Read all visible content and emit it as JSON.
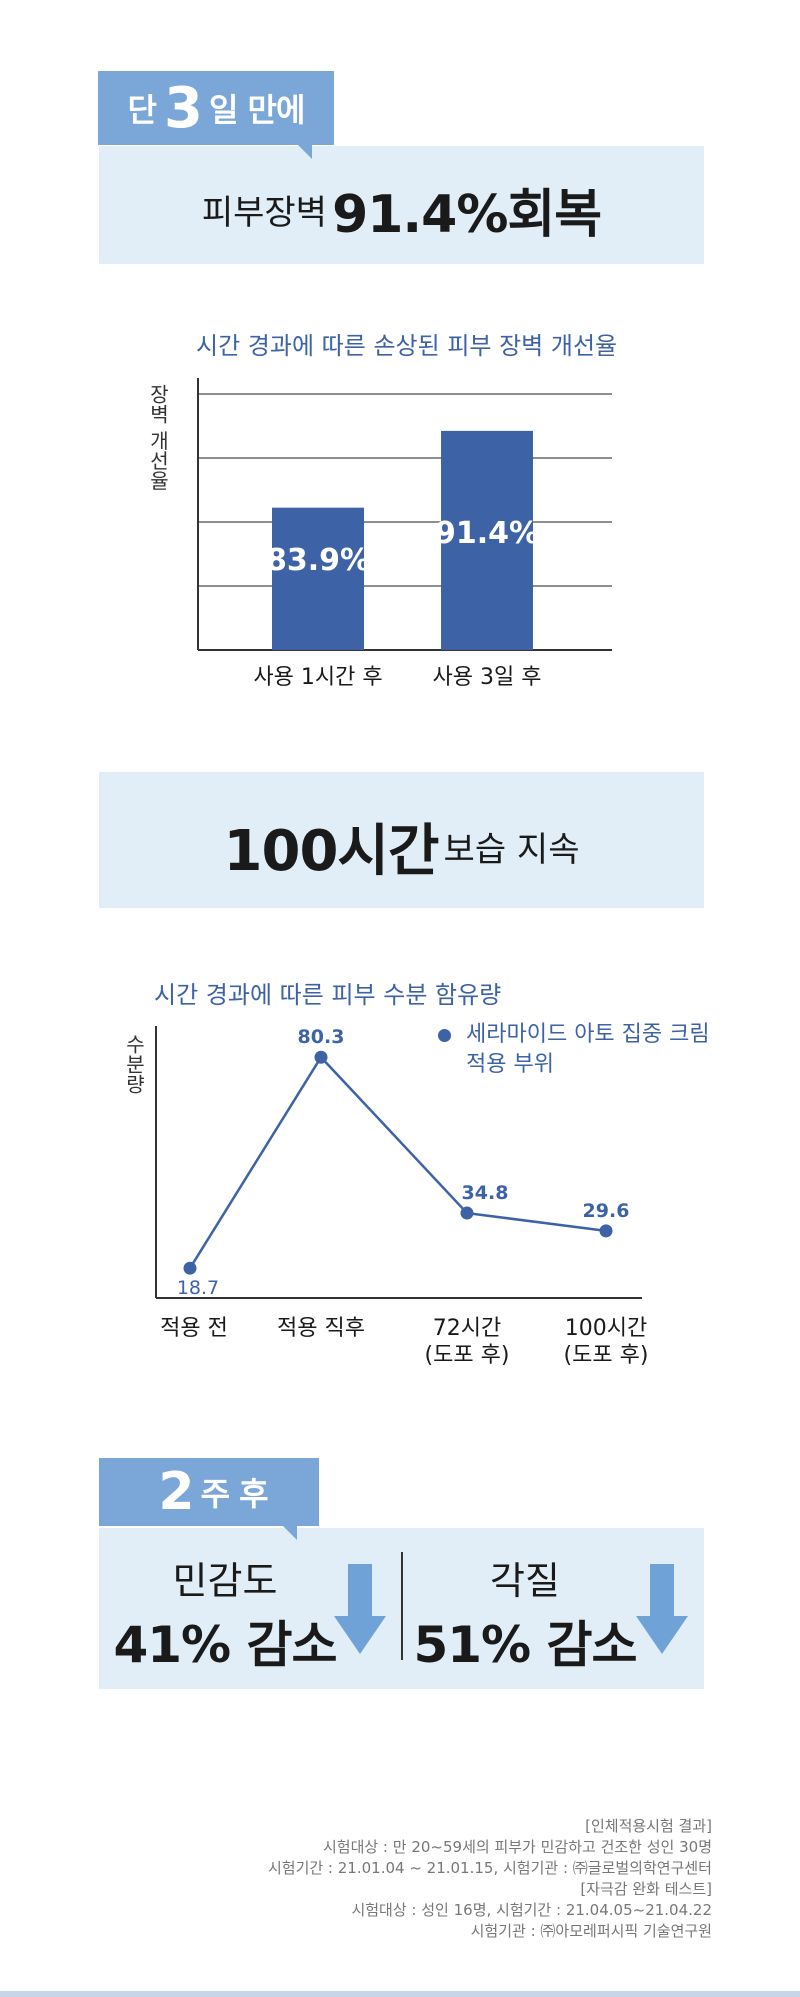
{
  "section1": {
    "tag": {
      "prefix": "단",
      "number": "3",
      "suffix": "일 만에"
    },
    "headline": {
      "lead": "피부장벽",
      "value": "91.4%회복"
    }
  },
  "chart1": {
    "title": "시간 경과에 따른 손상된 피부 장벽 개선율",
    "ylabel": "장벽 개선율"
  },
  "section2": {
    "headline": {
      "value": "100시간",
      "rest": "보습 지속"
    }
  },
  "chart2": {
    "title": "시간 경과에 따른 피부 수분 함유량",
    "ylabel": "수분량",
    "legend": {
      "line1": "세라마이드 아토 집중 크림",
      "line2": "적용 부위"
    }
  },
  "section3": {
    "tag": {
      "number": "2",
      "suffix": "주 후"
    },
    "items": [
      {
        "label": "민감도",
        "value": "41% 감소"
      },
      {
        "label": "각질",
        "value": "51% 감소"
      }
    ]
  },
  "footnotes": [
    "[인체적용시험 결과]",
    "시험대상 : 만 20~59세의 피부가 민감하고 건조한 성인 30명",
    "시험기간 : 21.01.04 ~ 21.01.15, 시험기관 : ㈜글로벌의학연구센터",
    "[자극감 완화 테스트]",
    "시험대상 : 성인 16명,  시험기간 : 21.04.05~21.04.22",
    "시험기관 : ㈜아모레퍼시픽 기술연구원"
  ],
  "colors": {
    "panel": "#e1eef8",
    "tag": "#7aa7d8",
    "bar": "#3d62a6",
    "accent_text": "#3d62a6",
    "arrow": "#6fa3d8"
  },
  "chart_data": [
    {
      "type": "bar",
      "title": "시간 경과에 따른 손상된 피부 장벽 개선율",
      "ylabel": "장벽 개선율",
      "xlabel": "",
      "categories": [
        "사용 1시간 후",
        "사용 3일 후"
      ],
      "values": [
        83.9,
        91.4
      ],
      "labels": [
        "83.9%",
        "91.4%"
      ],
      "ylim": [
        70,
        95
      ],
      "grid": true
    },
    {
      "type": "line",
      "title": "시간 경과에 따른 피부 수분 함유량",
      "ylabel": "수분량",
      "xlabel": "",
      "categories": [
        [
          "적용 전"
        ],
        [
          "적용 직후"
        ],
        [
          "72시간",
          "(도포 후)"
        ],
        [
          "100시간",
          "(도포 후)"
        ]
      ],
      "series": [
        {
          "name": "세라마이드 아토 집중 크림 적용 부위",
          "values": [
            18.7,
            80.3,
            34.8,
            29.6
          ]
        }
      ],
      "ylim": [
        10,
        90
      ],
      "legend": "top-right"
    }
  ]
}
